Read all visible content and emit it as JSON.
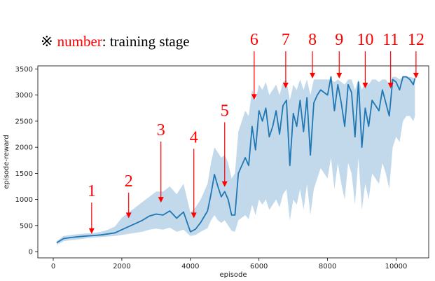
{
  "note": {
    "symbol": "※",
    "keyword": "number",
    "rest": ": training stage",
    "keyword_color": "#ff0000"
  },
  "chart_data": {
    "type": "line",
    "title": "",
    "xlabel": "episode",
    "ylabel": "episode-reward",
    "xlim": [
      -450,
      10950
    ],
    "ylim": [
      -120,
      3560
    ],
    "x_ticks": [
      0,
      2000,
      4000,
      6000,
      8000,
      10000
    ],
    "y_ticks": [
      0,
      500,
      1000,
      1500,
      2000,
      2500,
      3000,
      3500
    ],
    "grid": false,
    "line_color": "#1f77b4",
    "band_color": "#1f77b4",
    "series": [
      {
        "x": [
          100,
          300,
          500,
          800,
          1000,
          1200,
          1400,
          1600,
          1800,
          2000,
          2200,
          2400,
          2600,
          2800,
          3000,
          3200,
          3400,
          3600,
          3800,
          4000,
          4150,
          4300,
          4500,
          4600,
          4700,
          4800,
          4900,
          5000,
          5100,
          5200,
          5300,
          5400,
          5500,
          5600,
          5700,
          5800,
          5900,
          6000,
          6100,
          6200,
          6300,
          6400,
          6500,
          6600,
          6700,
          6800,
          6900,
          7000,
          7100,
          7200,
          7300,
          7400,
          7500,
          7600,
          7700,
          7800,
          7900,
          8000,
          8100,
          8200,
          8300,
          8400,
          8500,
          8600,
          8700,
          8800,
          8900,
          9000,
          9100,
          9200,
          9300,
          9400,
          9500,
          9600,
          9700,
          9800,
          9900,
          10000,
          10100,
          10200,
          10300,
          10400,
          10500,
          10550
        ],
        "values": [
          170,
          250,
          270,
          290,
          300,
          310,
          320,
          340,
          360,
          420,
          480,
          540,
          600,
          680,
          720,
          700,
          780,
          640,
          760,
          380,
          430,
          560,
          780,
          1100,
          1480,
          1250,
          1050,
          1150,
          1000,
          700,
          700,
          1500,
          1650,
          1800,
          1650,
          2400,
          1950,
          2700,
          2500,
          2750,
          2200,
          2400,
          2700,
          2250,
          2800,
          2900,
          1650,
          2650,
          2400,
          2900,
          2300,
          2950,
          1850,
          2850,
          3000,
          3100,
          3050,
          3000,
          3350,
          2700,
          3200,
          2850,
          2400,
          3200,
          3050,
          2200,
          3250,
          2000,
          2750,
          2400,
          2900,
          2800,
          2700,
          3100,
          2850,
          2600,
          3300,
          3250,
          3100,
          3350,
          3350,
          3300,
          3200,
          3320
        ],
        "lower": [
          130,
          200,
          220,
          240,
          260,
          270,
          280,
          290,
          300,
          320,
          340,
          360,
          380,
          420,
          440,
          420,
          460,
          380,
          420,
          300,
          320,
          380,
          450,
          600,
          700,
          600,
          550,
          600,
          500,
          400,
          380,
          600,
          650,
          700,
          620,
          900,
          700,
          1000,
          900,
          1000,
          800,
          900,
          1000,
          850,
          1100,
          1200,
          600,
          1000,
          900,
          1200,
          800,
          1300,
          700,
          1200,
          1400,
          1600,
          1500,
          1400,
          1800,
          1200,
          1700,
          1300,
          1000,
          1700,
          1500,
          900,
          1800,
          800,
          1300,
          1000,
          1500,
          1400,
          1300,
          1700,
          1500,
          1200,
          2000,
          2200,
          2100,
          2500,
          2600,
          2600,
          2500,
          2600
        ],
        "upper": [
          200,
          300,
          320,
          340,
          350,
          360,
          380,
          420,
          480,
          650,
          750,
          850,
          950,
          1050,
          1150,
          1150,
          1250,
          1100,
          1300,
          750,
          850,
          1000,
          1300,
          1700,
          2000,
          1900,
          1800,
          1850,
          1700,
          1400,
          1500,
          2300,
          2500,
          2700,
          2600,
          3100,
          2900,
          3200,
          3100,
          3250,
          3000,
          3100,
          3200,
          3000,
          3250,
          3300,
          2900,
          3200,
          3100,
          3300,
          3100,
          3300,
          3000,
          3300,
          3300,
          3300,
          3300,
          3300,
          3300,
          3250,
          3300,
          3250,
          3200,
          3300,
          3300,
          3100,
          3300,
          3100,
          3250,
          3200,
          3300,
          3300,
          3250,
          3300,
          3300,
          3200,
          3350,
          3350,
          3300,
          3350,
          3350,
          3350,
          3330,
          3340
        ]
      }
    ],
    "annotations": [
      {
        "label": "1",
        "x": 1120,
        "y_start": 940,
        "y_end": 340
      },
      {
        "label": "2",
        "x": 2200,
        "y_start": 1130,
        "y_end": 640
      },
      {
        "label": "3",
        "x": 3140,
        "y_start": 2110,
        "y_end": 940
      },
      {
        "label": "4",
        "x": 4100,
        "y_start": 1970,
        "y_end": 640
      },
      {
        "label": "5",
        "x": 5000,
        "y_start": 2480,
        "y_end": 1240
      },
      {
        "label": "6",
        "x": 5860,
        "y_start": 3840,
        "y_end": 2910
      },
      {
        "label": "7",
        "x": 6780,
        "y_start": 3840,
        "y_end": 3130
      },
      {
        "label": "8",
        "x": 7560,
        "y_start": 3840,
        "y_end": 3320
      },
      {
        "label": "9",
        "x": 8340,
        "y_start": 3840,
        "y_end": 3320
      },
      {
        "label": "10",
        "x": 9100,
        "y_start": 3840,
        "y_end": 3130
      },
      {
        "label": "11",
        "x": 9840,
        "y_start": 3840,
        "y_end": 3130
      },
      {
        "label": "12",
        "x": 10580,
        "y_start": 3840,
        "y_end": 3320
      }
    ],
    "annotation_color": "#ff0000"
  }
}
